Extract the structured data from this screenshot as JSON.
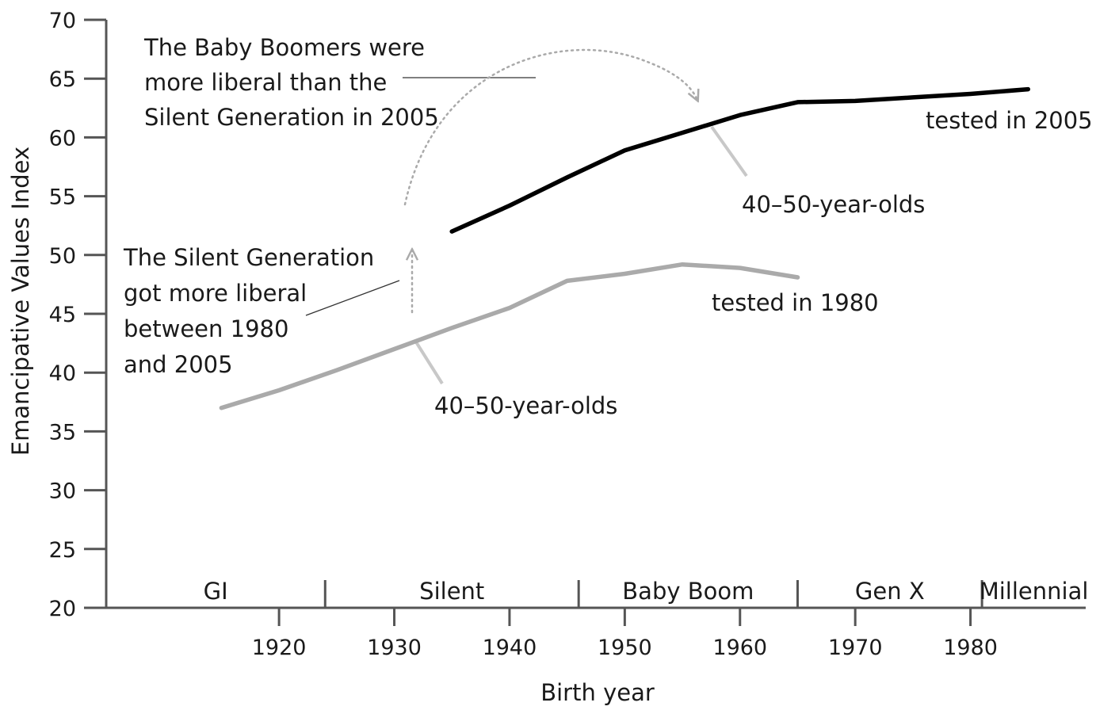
{
  "chart_data": {
    "type": "line",
    "xlabel": "Birth year",
    "ylabel": "Emancipative Values Index",
    "xlim": [
      1905,
      1990
    ],
    "ylim": [
      20,
      70
    ],
    "x_ticks": [
      1920,
      1930,
      1940,
      1950,
      1960,
      1970,
      1980
    ],
    "y_ticks": [
      20,
      25,
      30,
      35,
      40,
      45,
      50,
      55,
      60,
      65,
      70
    ],
    "grid": false,
    "legend": "none",
    "series": [
      {
        "name": "tested in 1980",
        "color": "#aaaaaa",
        "x": [
          1915,
          1920,
          1925,
          1930,
          1935,
          1940,
          1945,
          1950,
          1955,
          1960,
          1965
        ],
        "y": [
          37.0,
          38.5,
          40.2,
          42.0,
          43.8,
          45.5,
          47.8,
          48.4,
          49.2,
          48.9,
          48.1
        ]
      },
      {
        "name": "tested in 2005",
        "color": "#000000",
        "x": [
          1935,
          1940,
          1945,
          1950,
          1955,
          1960,
          1965,
          1970,
          1975,
          1980,
          1985
        ],
        "y": [
          52.0,
          54.2,
          56.6,
          58.9,
          60.4,
          61.9,
          63.0,
          63.1,
          63.4,
          63.7,
          64.1
        ]
      }
    ],
    "generations": [
      {
        "label": "GI",
        "from": 1905,
        "to": 1924
      },
      {
        "label": "Silent",
        "from": 1924,
        "to": 1946
      },
      {
        "label": "Baby Boom",
        "from": 1946,
        "to": 1965
      },
      {
        "label": "Gen X",
        "from": 1965,
        "to": 1981
      },
      {
        "label": "Millennial",
        "from": 1981,
        "to": 1990
      }
    ],
    "annotations": {
      "boomers": [
        "The Baby Boomers were",
        "more liberal than the",
        "Silent Generation in 2005"
      ],
      "silent": [
        "The Silent Generation",
        "got more liberal",
        "between 1980",
        "and 2005"
      ],
      "age_2005": "40–50-year-olds",
      "age_1980": "40–50-year-olds",
      "series_2005": "tested in 2005",
      "series_1980": "tested in 1980"
    }
  }
}
